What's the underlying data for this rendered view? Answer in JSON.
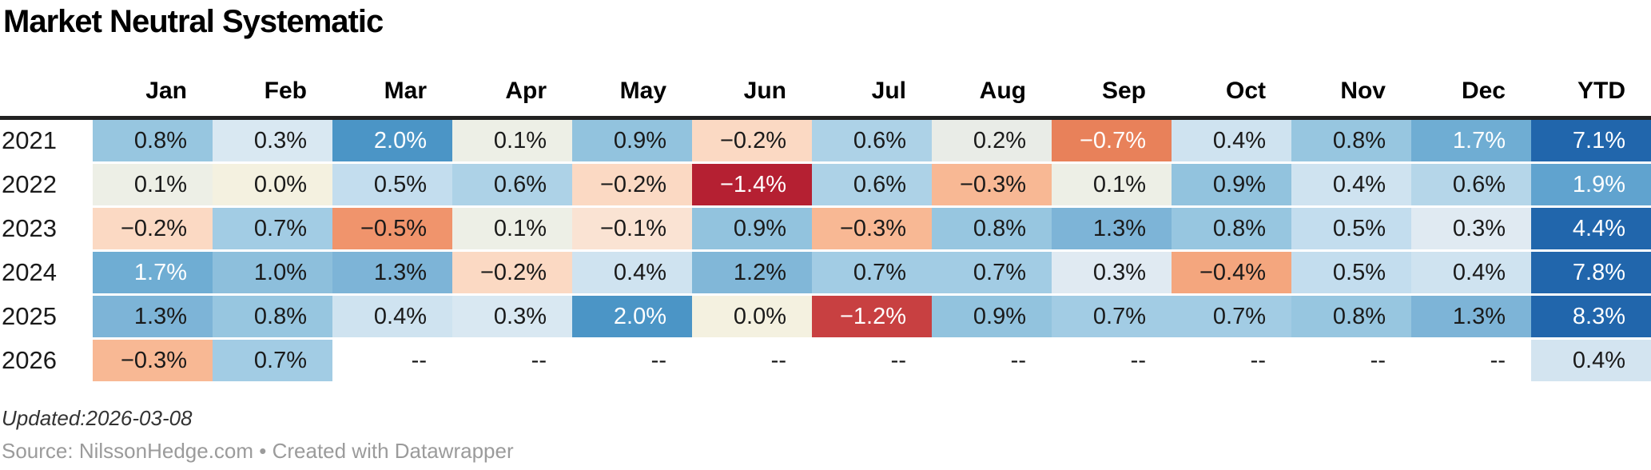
{
  "title": "Market Neutral Systematic",
  "updated": "Updated:2026-03-08",
  "source": "Source: NilssonHedge.com • Created with Datawrapper",
  "corner_label": "",
  "columns": [
    "Jan",
    "Feb",
    "Mar",
    "Apr",
    "May",
    "Jun",
    "Jul",
    "Aug",
    "Sep",
    "Oct",
    "Nov",
    "Dec",
    "YTD"
  ],
  "text_colors": {
    "dark": "#1a1a1a",
    "light": "#ffffff"
  },
  "rows": [
    {
      "year": "2021",
      "cells": [
        {
          "t": "0.8%",
          "bg": "#97c6e0",
          "fg": "#1a1a1a"
        },
        {
          "t": "0.3%",
          "bg": "#d9e8f2",
          "fg": "#1a1a1a"
        },
        {
          "t": "2.0%",
          "bg": "#4b95c6",
          "fg": "#ffffff"
        },
        {
          "t": "0.1%",
          "bg": "#edefe6",
          "fg": "#1a1a1a"
        },
        {
          "t": "0.9%",
          "bg": "#92c3de",
          "fg": "#1a1a1a"
        },
        {
          "t": "−0.2%",
          "bg": "#fbd9c3",
          "fg": "#1a1a1a"
        },
        {
          "t": "0.6%",
          "bg": "#add2e7",
          "fg": "#1a1a1a"
        },
        {
          "t": "0.2%",
          "bg": "#e9ece7",
          "fg": "#1a1a1a"
        },
        {
          "t": "−0.7%",
          "bg": "#e8815a",
          "fg": "#ffffff"
        },
        {
          "t": "0.4%",
          "bg": "#cfe3f0",
          "fg": "#1a1a1a"
        },
        {
          "t": "0.8%",
          "bg": "#97c6e0",
          "fg": "#1a1a1a"
        },
        {
          "t": "1.7%",
          "bg": "#6fadd3",
          "fg": "#ffffff"
        },
        {
          "t": "7.1%",
          "bg": "#2166ac",
          "fg": "#ffffff"
        }
      ]
    },
    {
      "year": "2022",
      "cells": [
        {
          "t": "0.1%",
          "bg": "#edefe6",
          "fg": "#1a1a1a"
        },
        {
          "t": "0.0%",
          "bg": "#f4f1e0",
          "fg": "#1a1a1a"
        },
        {
          "t": "0.5%",
          "bg": "#c3ddee",
          "fg": "#1a1a1a"
        },
        {
          "t": "0.6%",
          "bg": "#add2e7",
          "fg": "#1a1a1a"
        },
        {
          "t": "−0.2%",
          "bg": "#fbd9c3",
          "fg": "#1a1a1a"
        },
        {
          "t": "−1.4%",
          "bg": "#b52032",
          "fg": "#ffffff"
        },
        {
          "t": "0.6%",
          "bg": "#add2e7",
          "fg": "#1a1a1a"
        },
        {
          "t": "−0.3%",
          "bg": "#f8b894",
          "fg": "#1a1a1a"
        },
        {
          "t": "0.1%",
          "bg": "#edefe6",
          "fg": "#1a1a1a"
        },
        {
          "t": "0.9%",
          "bg": "#92c3de",
          "fg": "#1a1a1a"
        },
        {
          "t": "0.4%",
          "bg": "#cfe3f0",
          "fg": "#1a1a1a"
        },
        {
          "t": "0.6%",
          "bg": "#b5d6e9",
          "fg": "#1a1a1a"
        },
        {
          "t": "1.9%",
          "bg": "#60a3cf",
          "fg": "#ffffff"
        }
      ]
    },
    {
      "year": "2023",
      "cells": [
        {
          "t": "−0.2%",
          "bg": "#fbd9c3",
          "fg": "#1a1a1a"
        },
        {
          "t": "0.7%",
          "bg": "#a2cce4",
          "fg": "#1a1a1a"
        },
        {
          "t": "−0.5%",
          "bg": "#f0946c",
          "fg": "#1a1a1a"
        },
        {
          "t": "0.1%",
          "bg": "#edefe6",
          "fg": "#1a1a1a"
        },
        {
          "t": "−0.1%",
          "bg": "#fae3d3",
          "fg": "#1a1a1a"
        },
        {
          "t": "0.9%",
          "bg": "#92c3de",
          "fg": "#1a1a1a"
        },
        {
          "t": "−0.3%",
          "bg": "#f8b894",
          "fg": "#1a1a1a"
        },
        {
          "t": "0.8%",
          "bg": "#97c6e0",
          "fg": "#1a1a1a"
        },
        {
          "t": "1.3%",
          "bg": "#7db4d7",
          "fg": "#1a1a1a"
        },
        {
          "t": "0.8%",
          "bg": "#97c6e0",
          "fg": "#1a1a1a"
        },
        {
          "t": "0.5%",
          "bg": "#c3ddee",
          "fg": "#1a1a1a"
        },
        {
          "t": "0.3%",
          "bg": "#e0eaf2",
          "fg": "#1a1a1a"
        },
        {
          "t": "4.4%",
          "bg": "#2166ac",
          "fg": "#ffffff"
        }
      ]
    },
    {
      "year": "2024",
      "cells": [
        {
          "t": "1.7%",
          "bg": "#6fadd3",
          "fg": "#ffffff"
        },
        {
          "t": "1.0%",
          "bg": "#8dbfdc",
          "fg": "#1a1a1a"
        },
        {
          "t": "1.3%",
          "bg": "#7db4d7",
          "fg": "#1a1a1a"
        },
        {
          "t": "−0.2%",
          "bg": "#fbd9c3",
          "fg": "#1a1a1a"
        },
        {
          "t": "0.4%",
          "bg": "#cfe3f0",
          "fg": "#1a1a1a"
        },
        {
          "t": "1.2%",
          "bg": "#81b7d8",
          "fg": "#1a1a1a"
        },
        {
          "t": "0.7%",
          "bg": "#a2cce4",
          "fg": "#1a1a1a"
        },
        {
          "t": "0.7%",
          "bg": "#a2cce4",
          "fg": "#1a1a1a"
        },
        {
          "t": "0.3%",
          "bg": "#e0eaf2",
          "fg": "#1a1a1a"
        },
        {
          "t": "−0.4%",
          "bg": "#f4a67e",
          "fg": "#1a1a1a"
        },
        {
          "t": "0.5%",
          "bg": "#c3ddee",
          "fg": "#1a1a1a"
        },
        {
          "t": "0.4%",
          "bg": "#cfe3f0",
          "fg": "#1a1a1a"
        },
        {
          "t": "7.8%",
          "bg": "#2166ac",
          "fg": "#ffffff"
        }
      ]
    },
    {
      "year": "2025",
      "cells": [
        {
          "t": "1.3%",
          "bg": "#7db4d7",
          "fg": "#1a1a1a"
        },
        {
          "t": "0.8%",
          "bg": "#97c6e0",
          "fg": "#1a1a1a"
        },
        {
          "t": "0.4%",
          "bg": "#cfe3f0",
          "fg": "#1a1a1a"
        },
        {
          "t": "0.3%",
          "bg": "#d9e8f2",
          "fg": "#1a1a1a"
        },
        {
          "t": "2.0%",
          "bg": "#4b95c6",
          "fg": "#ffffff"
        },
        {
          "t": "0.0%",
          "bg": "#f4f1e0",
          "fg": "#1a1a1a"
        },
        {
          "t": "−1.2%",
          "bg": "#c84041",
          "fg": "#ffffff"
        },
        {
          "t": "0.9%",
          "bg": "#92c3de",
          "fg": "#1a1a1a"
        },
        {
          "t": "0.7%",
          "bg": "#a2cce4",
          "fg": "#1a1a1a"
        },
        {
          "t": "0.7%",
          "bg": "#a2cce4",
          "fg": "#1a1a1a"
        },
        {
          "t": "0.8%",
          "bg": "#97c6e0",
          "fg": "#1a1a1a"
        },
        {
          "t": "1.3%",
          "bg": "#7db4d7",
          "fg": "#1a1a1a"
        },
        {
          "t": "8.3%",
          "bg": "#2166ac",
          "fg": "#ffffff"
        }
      ]
    },
    {
      "year": "2026",
      "cells": [
        {
          "t": "−0.3%",
          "bg": "#f8b894",
          "fg": "#1a1a1a"
        },
        {
          "t": "0.7%",
          "bg": "#a2cce4",
          "fg": "#1a1a1a"
        },
        {
          "t": "--",
          "bg": "#ffffff",
          "fg": "#1a1a1a"
        },
        {
          "t": "--",
          "bg": "#ffffff",
          "fg": "#1a1a1a"
        },
        {
          "t": "--",
          "bg": "#ffffff",
          "fg": "#1a1a1a"
        },
        {
          "t": "--",
          "bg": "#ffffff",
          "fg": "#1a1a1a"
        },
        {
          "t": "--",
          "bg": "#ffffff",
          "fg": "#1a1a1a"
        },
        {
          "t": "--",
          "bg": "#ffffff",
          "fg": "#1a1a1a"
        },
        {
          "t": "--",
          "bg": "#ffffff",
          "fg": "#1a1a1a"
        },
        {
          "t": "--",
          "bg": "#ffffff",
          "fg": "#1a1a1a"
        },
        {
          "t": "--",
          "bg": "#ffffff",
          "fg": "#1a1a1a"
        },
        {
          "t": "--",
          "bg": "#ffffff",
          "fg": "#1a1a1a"
        },
        {
          "t": "0.4%",
          "bg": "#d3e4f0",
          "fg": "#1a1a1a"
        }
      ]
    }
  ],
  "chart_data": {
    "type": "heatmap",
    "title": "Market Neutral Systematic",
    "x_labels": [
      "Jan",
      "Feb",
      "Mar",
      "Apr",
      "May",
      "Jun",
      "Jul",
      "Aug",
      "Sep",
      "Oct",
      "Nov",
      "Dec",
      "YTD"
    ],
    "y_labels": [
      "2021",
      "2022",
      "2023",
      "2024",
      "2025",
      "2026"
    ],
    "unit": "%",
    "series": [
      {
        "name": "2021",
        "values": [
          0.8,
          0.3,
          2.0,
          0.1,
          0.9,
          -0.2,
          0.6,
          0.2,
          -0.7,
          0.4,
          0.8,
          1.7
        ],
        "ytd": 7.1
      },
      {
        "name": "2022",
        "values": [
          0.1,
          0.0,
          0.5,
          0.6,
          -0.2,
          -1.4,
          0.6,
          -0.3,
          0.1,
          0.9,
          0.4,
          0.6
        ],
        "ytd": 1.9
      },
      {
        "name": "2023",
        "values": [
          -0.2,
          0.7,
          -0.5,
          0.1,
          -0.1,
          0.9,
          -0.3,
          0.8,
          1.3,
          0.8,
          0.5,
          0.3
        ],
        "ytd": 4.4
      },
      {
        "name": "2024",
        "values": [
          1.7,
          1.0,
          1.3,
          -0.2,
          0.4,
          1.2,
          0.7,
          0.7,
          0.3,
          -0.4,
          0.5,
          0.4
        ],
        "ytd": 7.8
      },
      {
        "name": "2025",
        "values": [
          1.3,
          0.8,
          0.4,
          0.3,
          2.0,
          0.0,
          -1.2,
          0.9,
          0.7,
          0.7,
          0.8,
          1.3
        ],
        "ytd": 8.3
      },
      {
        "name": "2026",
        "values": [
          -0.3,
          0.7,
          null,
          null,
          null,
          null,
          null,
          null,
          null,
          null,
          null,
          null
        ],
        "ytd": 0.4
      }
    ],
    "missing_marker": "--",
    "colorscale": {
      "style": "diverging",
      "negative_extreme": "#b52032",
      "center": "#f4f1e0",
      "positive_mid": "#4b95c6",
      "positive_extreme": "#2166ac"
    },
    "legend": false,
    "grid": false
  }
}
